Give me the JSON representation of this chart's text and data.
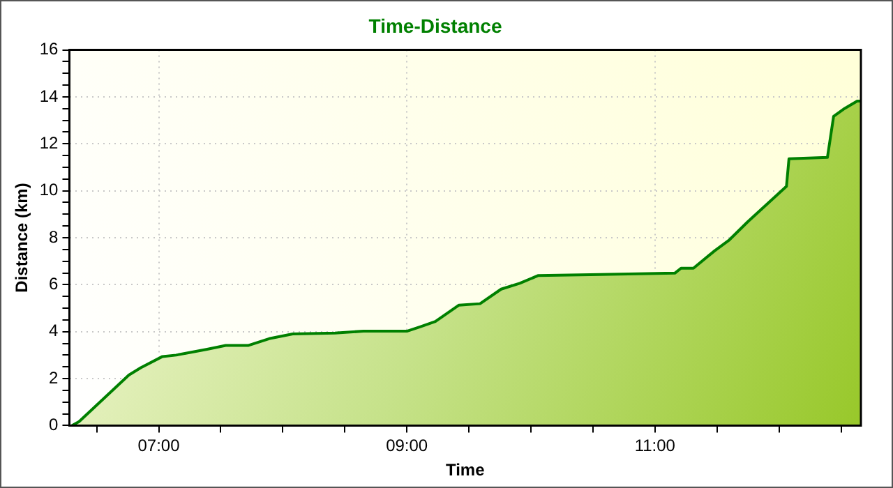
{
  "chart_data": {
    "type": "area",
    "title": "Time-Distance",
    "xlabel": "Time",
    "ylabel": "Distance (km)",
    "series": [
      {
        "color": "#008000",
        "x": [
          6.3,
          6.358,
          6.759,
          6.855,
          7.03,
          7.14,
          7.39,
          7.54,
          7.72,
          7.89,
          8.08,
          8.42,
          8.65,
          9.0,
          9.11,
          9.23,
          9.42,
          9.59,
          9.76,
          9.91,
          10.06,
          10.56,
          11.16,
          11.21,
          11.31,
          11.48,
          11.6,
          11.75,
          12.06,
          12.08,
          12.39,
          12.44,
          12.53,
          12.63,
          12.66
        ],
        "values": [
          0,
          0.17,
          2.15,
          2.46,
          2.94,
          3.0,
          3.25,
          3.41,
          3.41,
          3.7,
          3.9,
          3.94,
          4.02,
          4.02,
          4.21,
          4.43,
          5.13,
          5.19,
          5.81,
          6.06,
          6.39,
          6.43,
          6.49,
          6.7,
          6.7,
          7.44,
          7.91,
          8.69,
          10.19,
          11.36,
          11.42,
          13.17,
          13.51,
          13.82,
          13.82
        ]
      }
    ],
    "xlim": [
      6.28,
      12.66
    ],
    "xticks": [
      {
        "value": 6.5,
        "label": null
      },
      {
        "value": 7,
        "label": "07:00"
      },
      {
        "value": 7.5,
        "label": null
      },
      {
        "value": 8,
        "label": null
      },
      {
        "value": 8.5,
        "label": null
      },
      {
        "value": 9,
        "label": "09:00"
      },
      {
        "value": 9.5,
        "label": null
      },
      {
        "value": 10,
        "label": null
      },
      {
        "value": 10.5,
        "label": null
      },
      {
        "value": 11,
        "label": "11:00"
      },
      {
        "value": 11.5,
        "label": null
      },
      {
        "value": 12,
        "label": null
      },
      {
        "value": 12.5,
        "label": null
      }
    ],
    "ylim": [
      0,
      16
    ],
    "yticks": [
      0,
      {
        "value": 0.5,
        "label": null
      },
      {
        "value": 1,
        "label": null
      },
      {
        "value": 1.5,
        "label": null
      },
      2,
      {
        "value": 2.5,
        "label": null
      },
      {
        "value": 3,
        "label": null
      },
      {
        "value": 3.5,
        "label": null
      },
      4,
      {
        "value": 4.5,
        "label": null
      },
      {
        "value": 5,
        "label": null
      },
      {
        "value": 5.5,
        "label": null
      },
      6,
      {
        "value": 6.5,
        "label": null
      },
      {
        "value": 7,
        "label": null
      },
      {
        "value": 7.5,
        "label": null
      },
      8,
      {
        "value": 8.5,
        "label": null
      },
      {
        "value": 9,
        "label": null
      },
      {
        "value": 9.5,
        "label": null
      },
      10,
      {
        "value": 10.5,
        "label": null
      },
      {
        "value": 11,
        "label": null
      },
      {
        "value": 11.5,
        "label": null
      },
      12,
      {
        "value": 12.5,
        "label": null
      },
      {
        "value": 13,
        "label": null
      },
      {
        "value": 13.5,
        "label": null
      },
      14,
      {
        "value": 14.5,
        "label": null
      },
      {
        "value": 15,
        "label": null
      },
      {
        "value": 15.5,
        "label": null
      },
      16
    ],
    "grid": true,
    "line_style": "solid",
    "marker": "none"
  }
}
